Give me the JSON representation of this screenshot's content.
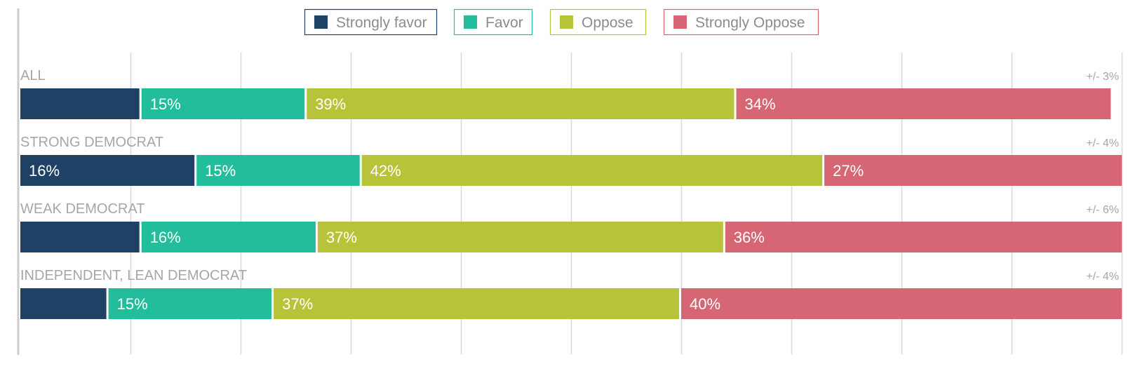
{
  "chart_data": {
    "type": "bar",
    "orientation": "horizontal",
    "stacked": true,
    "xlim": [
      0,
      100
    ],
    "grid": true,
    "legend_position": "top",
    "series": [
      {
        "name": "Strongly favor",
        "color": "#1f4166",
        "values": [
          11,
          16,
          11,
          8
        ]
      },
      {
        "name": "Favor",
        "color": "#22bd9a",
        "values": [
          15,
          15,
          16,
          15
        ]
      },
      {
        "name": "Oppose",
        "color": "#b7c43a",
        "values": [
          39,
          42,
          37,
          37
        ]
      },
      {
        "name": "Strongly Oppose",
        "color": "#d76674",
        "values": [
          34,
          27,
          36,
          40
        ]
      }
    ],
    "categories": [
      "ALL",
      "STRONG DEMOCRAT",
      "WEAK DEMOCRAT",
      "INDEPENDENT, LEAN DEMOCRAT"
    ],
    "margins_of_error": [
      "+/- 3%",
      "+/- 4%",
      "+/- 6%",
      "+/- 4%"
    ],
    "data_labels": [
      [
        "",
        "15%",
        "39%",
        "34%"
      ],
      [
        "16%",
        "15%",
        "42%",
        "27%"
      ],
      [
        "",
        "16%",
        "37%",
        "36%"
      ],
      [
        "",
        "15%",
        "37%",
        "40%"
      ]
    ],
    "colors": {
      "grid": "#d9d9d9",
      "category_text": "#a6a6a6",
      "legend_text": "#8c8c8c",
      "bar_label": "#ffffff",
      "axis": "#cccccc"
    }
  }
}
